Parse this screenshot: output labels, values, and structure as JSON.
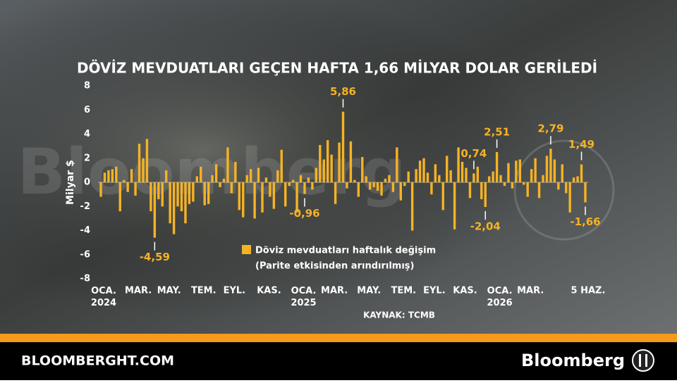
{
  "chart_data": {
    "type": "bar",
    "title": "DÖVİZ MEVDUATLARI GEÇEN HAFTA 1,66 MİLYAR DOLAR GERİLEDİ",
    "y_label": "Milyar $",
    "source": "KAYNAK: TCMB",
    "legend_note": "(Parite etkisinden arındırılmış)",
    "ylim": [
      -8,
      8
    ],
    "yticks": [
      8,
      6,
      4,
      2,
      0,
      -2,
      -4,
      -6,
      -8
    ],
    "categories": [
      "OCA.\n2024",
      null,
      null,
      null,
      null,
      null,
      null,
      null,
      null,
      "MAR.",
      null,
      null,
      null,
      null,
      null,
      null,
      null,
      "MAY.",
      null,
      null,
      null,
      null,
      null,
      null,
      null,
      null,
      "TEM.",
      null,
      null,
      null,
      null,
      null,
      null,
      null,
      "EYL.",
      null,
      null,
      null,
      null,
      null,
      null,
      null,
      null,
      "KAS.",
      null,
      null,
      null,
      null,
      null,
      null,
      null,
      null,
      "OCA.\n2025",
      null,
      null,
      null,
      null,
      null,
      null,
      null,
      "MAR.",
      null,
      null,
      null,
      null,
      null,
      null,
      null,
      null,
      "MAY.",
      null,
      null,
      null,
      null,
      null,
      null,
      null,
      null,
      "TEM.",
      null,
      null,
      null,
      null,
      null,
      null,
      null,
      "EYL.",
      null,
      null,
      null,
      null,
      null,
      null,
      null,
      "KAS.",
      null,
      null,
      null,
      null,
      null,
      null,
      null,
      null,
      "OCA.\n2026",
      null,
      null,
      null,
      null,
      null,
      null,
      null,
      "MAR.",
      null,
      null,
      null,
      null,
      null,
      null,
      null,
      null,
      null,
      null,
      null,
      null,
      null,
      null,
      "5 HAZ."
    ],
    "series": [
      {
        "name": "Döviz mevduatları haftalık değişim",
        "color": "#f5b324",
        "values": [
          -1.2,
          0.8,
          1.0,
          1.1,
          1.3,
          -2.4,
          0.2,
          -0.8,
          1.1,
          -1.1,
          3.2,
          2.0,
          3.6,
          -2.4,
          -4.59,
          -1.4,
          -2.0,
          1.0,
          -3.4,
          -4.3,
          -2.0,
          -2.4,
          -3.4,
          -1.8,
          -1.6,
          0.5,
          1.3,
          -1.9,
          -1.8,
          0.6,
          1.5,
          -0.4,
          0.3,
          2.9,
          -0.9,
          1.7,
          -2.3,
          -2.9,
          0.6,
          1.1,
          -3.0,
          1.2,
          -2.5,
          0.4,
          -1.2,
          -2.2,
          1.0,
          2.7,
          -2.0,
          -0.3,
          0.2,
          -2.5,
          0.6,
          -0.96,
          0.4,
          -0.6,
          1.2,
          3.1,
          1.9,
          3.5,
          2.3,
          -1.8,
          3.3,
          5.86,
          -0.5,
          3.4,
          0.2,
          -1.2,
          2.1,
          0.5,
          -0.6,
          -0.4,
          -0.7,
          -1.1,
          0.3,
          0.6,
          -0.8,
          2.9,
          -1.5,
          -0.3,
          0.9,
          -4.0,
          1.1,
          1.8,
          2.0,
          0.8,
          -1.0,
          1.5,
          0.6,
          -2.3,
          2.2,
          1.0,
          -3.9,
          2.9,
          1.7,
          1.2,
          -1.3,
          0.74,
          1.3,
          -1.4,
          -2.04,
          0.5,
          0.9,
          2.51,
          0.6,
          -0.3,
          1.6,
          -0.5,
          1.8,
          1.9,
          -0.2,
          -1.2,
          1.1,
          2.0,
          -1.3,
          0.6,
          2.2,
          2.79,
          1.9,
          -0.6,
          1.5,
          -0.9,
          -2.5,
          0.4,
          0.5,
          1.49,
          -1.66
        ],
        "value_labels": [
          null,
          null,
          null,
          null,
          null,
          null,
          null,
          null,
          null,
          null,
          null,
          null,
          null,
          null,
          "-4,59",
          null,
          null,
          null,
          null,
          null,
          null,
          null,
          null,
          null,
          null,
          null,
          null,
          null,
          null,
          null,
          null,
          null,
          null,
          null,
          null,
          null,
          null,
          null,
          null,
          null,
          null,
          null,
          null,
          null,
          null,
          null,
          null,
          null,
          null,
          null,
          null,
          null,
          null,
          "-0,96",
          null,
          null,
          null,
          null,
          null,
          null,
          null,
          null,
          null,
          "5,86",
          null,
          null,
          null,
          null,
          null,
          null,
          null,
          null,
          null,
          null,
          null,
          null,
          null,
          null,
          null,
          null,
          null,
          null,
          null,
          null,
          null,
          null,
          null,
          null,
          null,
          null,
          null,
          null,
          null,
          null,
          null,
          null,
          null,
          "0,74",
          null,
          null,
          "-2,04",
          null,
          null,
          "2,51",
          null,
          null,
          null,
          null,
          null,
          null,
          null,
          null,
          null,
          null,
          null,
          null,
          null,
          "2,79",
          null,
          null,
          null,
          null,
          null,
          null,
          null,
          "1,49",
          "-1,66"
        ]
      }
    ]
  },
  "footer": {
    "site": "BLOOMBERGHT.COM",
    "brand": "Bloomberg"
  }
}
